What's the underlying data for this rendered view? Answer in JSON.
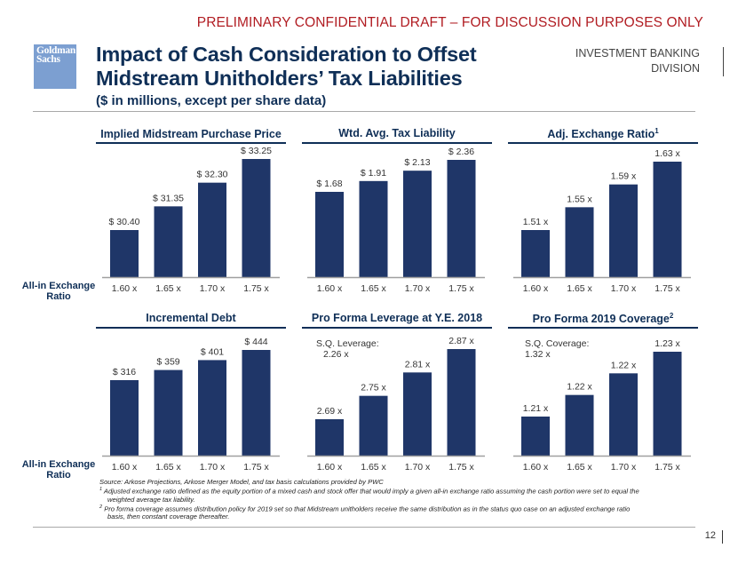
{
  "header": {
    "draft_banner": "PRELIMINARY CONFIDENTIAL DRAFT – FOR DISCUSSION PURPOSES ONLY",
    "logo_line1": "Goldman",
    "logo_line2": "Sachs",
    "title_line1": "Impact of Cash Consideration to Offset",
    "title_line2": "Midstream Unitholders’ Tax Liabilities",
    "subtitle": "($ in millions, except per share data)",
    "division_line1": "INVESTMENT BANKING",
    "division_line2": "DIVISION"
  },
  "row_label": {
    "line1": "All-in Exchange",
    "line2": "Ratio"
  },
  "colors": {
    "bar": "#1f3668",
    "title": "#0f2f57",
    "draft": "#b11c22",
    "axis": "#a0a0a0"
  },
  "chart_data": [
    {
      "type": "bar",
      "title": "Implied Midstream Purchase Price",
      "title_superscript": "",
      "categories": [
        "1.60 x",
        "1.65 x",
        "1.70 x",
        "1.75 x"
      ],
      "values": [
        30.4,
        31.35,
        32.3,
        33.25
      ],
      "data_labels": [
        "$ 30.40",
        "$ 31.35",
        "$ 32.30",
        "$ 33.25"
      ],
      "xlabel": "All-in Exchange Ratio",
      "ylabel": "",
      "grid": false,
      "note": ""
    },
    {
      "type": "bar",
      "title": "Wtd. Avg. Tax Liability",
      "title_superscript": "",
      "categories": [
        "1.60 x",
        "1.65 x",
        "1.70 x",
        "1.75 x"
      ],
      "values": [
        1.68,
        1.91,
        2.13,
        2.36
      ],
      "data_labels": [
        "$ 1.68",
        "$ 1.91",
        "$ 2.13",
        "$ 2.36"
      ],
      "xlabel": "All-in Exchange Ratio",
      "ylabel": "",
      "grid": false,
      "note": ""
    },
    {
      "type": "bar",
      "title": "Adj. Exchange Ratio",
      "title_superscript": "1",
      "categories": [
        "1.60 x",
        "1.65 x",
        "1.70 x",
        "1.75 x"
      ],
      "values": [
        1.51,
        1.55,
        1.59,
        1.63
      ],
      "data_labels": [
        "1.51 x",
        "1.55 x",
        "1.59 x",
        "1.63 x"
      ],
      "xlabel": "All-in Exchange Ratio",
      "ylabel": "",
      "grid": false,
      "note": ""
    },
    {
      "type": "bar",
      "title": "Incremental Debt",
      "title_superscript": "",
      "categories": [
        "1.60 x",
        "1.65 x",
        "1.70 x",
        "1.75 x"
      ],
      "values": [
        316,
        359,
        401,
        444
      ],
      "data_labels": [
        "$ 316",
        "$ 359",
        "$ 401",
        "$ 444"
      ],
      "xlabel": "All-in Exchange Ratio",
      "ylabel": "",
      "grid": false,
      "note": ""
    },
    {
      "type": "bar",
      "title": "Pro Forma Leverage at Y.E. 2018",
      "title_superscript": "",
      "categories": [
        "1.60 x",
        "1.65 x",
        "1.70 x",
        "1.75 x"
      ],
      "values": [
        2.69,
        2.75,
        2.81,
        2.87
      ],
      "data_labels": [
        "2.69 x",
        "2.75 x",
        "2.81 x",
        "2.87 x"
      ],
      "xlabel": "All-in Exchange Ratio",
      "ylabel": "",
      "grid": false,
      "note": "S.Q. Leverage:\n2.26 x",
      "note_line1": "S.Q. Leverage:",
      "note_line2": "2.26 x"
    },
    {
      "type": "bar",
      "title": "Pro Forma 2019 Coverage",
      "title_superscript": "2",
      "categories": [
        "1.60 x",
        "1.65 x",
        "1.70 x",
        "1.75 x"
      ],
      "values": [
        1.21,
        1.22,
        1.22,
        1.23
      ],
      "data_labels": [
        "1.21 x",
        "1.22 x",
        "1.22 x",
        "1.23 x"
      ],
      "xlabel": "All-in Exchange Ratio",
      "ylabel": "",
      "grid": false,
      "note": "S.Q. Coverage:\n1.32 x",
      "note_line1": "S.Q. Coverage:",
      "note_line2": "1.32 x"
    }
  ],
  "footnotes": {
    "source": "Source: Arkose Projections, Arkose Merger Model, and tax basis calculations provided by PWC",
    "note1_marker": "1",
    "note1_line1": "Adjusted exchange ratio defined as the equity portion of a mixed cash and stock offer that would imply a given all-in exchange ratio assuming the cash portion were set to equal the",
    "note1_line2": "weighted average tax liability.",
    "note2_marker": "2",
    "note2_line1": "Pro forma coverage assumes distribution policy  for 2019 set so that Midstream unitholders receive the same distribution as in the status quo case on an adjusted exchange ratio",
    "note2_line2": "basis, then constant coverage thereafter."
  },
  "footer": {
    "page_number": "12"
  }
}
